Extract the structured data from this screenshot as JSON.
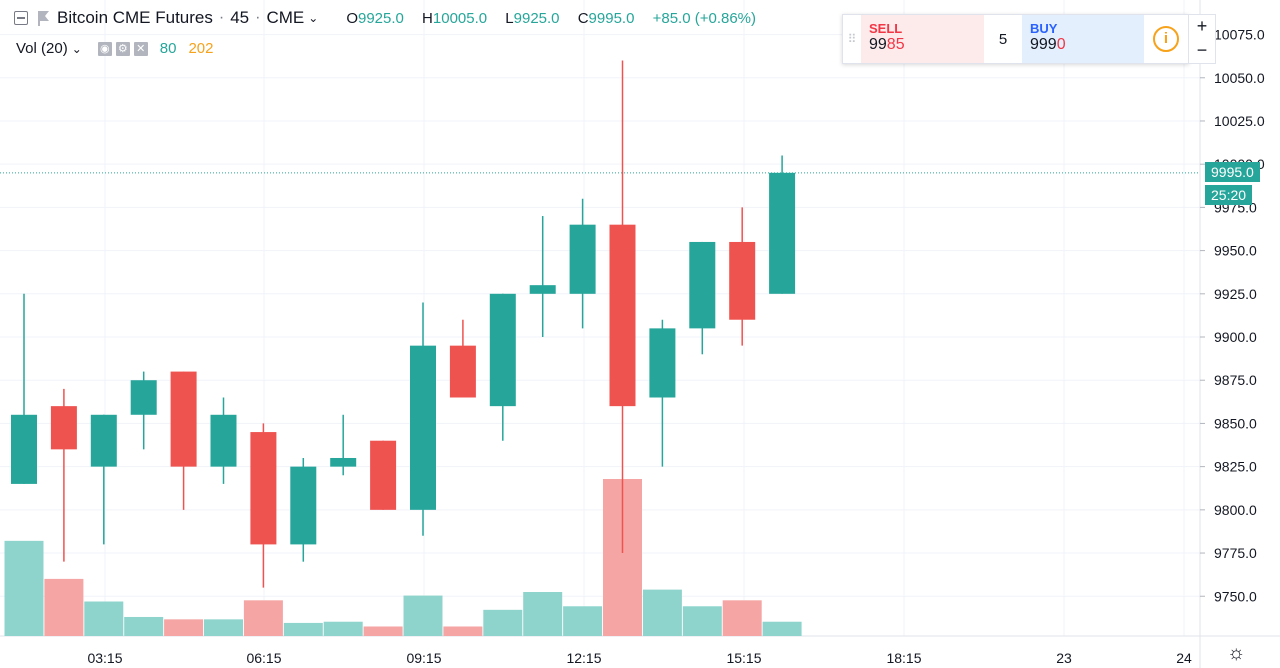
{
  "legend": {
    "title": "Bitcoin CME Futures",
    "interval": "45",
    "exchange": "CME",
    "ohlc": {
      "o_label": "O",
      "o": "9925.0",
      "h_label": "H",
      "h": "10005.0",
      "l_label": "L",
      "l": "9925.0",
      "c_label": "C",
      "c": "9995.0",
      "change": "+85.0 (+0.86%)"
    },
    "separator": "·"
  },
  "volume_legend": {
    "label": "Vol (20)",
    "value_1": "80",
    "value_2": "202"
  },
  "trade_panel": {
    "sell_label": "SELL",
    "sell_price_main": "99",
    "sell_price_hi": "85",
    "quantity": "5",
    "buy_label": "BUY",
    "buy_price_main": "999",
    "buy_price_hi": "0"
  },
  "zoom": {
    "plus": "+",
    "minus": "−"
  },
  "last_price": {
    "price": "9995.0",
    "countdown": "25:20"
  },
  "colors": {
    "up": "#26a69a",
    "down": "#ef5350",
    "up_vol": "#8fd4cc",
    "down_vol": "#f5a5a3"
  },
  "chart_data": {
    "type": "candlestick",
    "symbol": "Bitcoin CME Futures",
    "y_ticks": [
      9750.0,
      9775.0,
      9800.0,
      9825.0,
      9850.0,
      9875.0,
      9900.0,
      9925.0,
      9950.0,
      9975.0,
      10000.0,
      10025.0,
      10050.0,
      10075.0
    ],
    "y_tick_labels": [
      "9750.0",
      "9775.0",
      "9800.0",
      "9825.0",
      "9850.0",
      "9875.0",
      "9900.0",
      "9925.0",
      "9950.0",
      "9975.0",
      "10000.0",
      "10025.0",
      "10050.0",
      "10075.0"
    ],
    "x_ticks": [
      "03:15",
      "06:15",
      "09:15",
      "12:15",
      "15:15",
      "18:15",
      "23",
      "24"
    ],
    "ylim": [
      9727,
      10095
    ],
    "candles": [
      {
        "o": 9815,
        "h": 9925,
        "l": 9815,
        "c": 9855,
        "vol": 80
      },
      {
        "o": 9860,
        "h": 9870,
        "l": 9770,
        "c": 9835,
        "vol": 48
      },
      {
        "o": 9825,
        "h": 9855,
        "l": 9780,
        "c": 9855,
        "vol": 29
      },
      {
        "o": 9855,
        "h": 9880,
        "l": 9835,
        "c": 9875,
        "vol": 16
      },
      {
        "o": 9880,
        "h": 9880,
        "l": 9800,
        "c": 9825,
        "vol": 14
      },
      {
        "o": 9825,
        "h": 9865,
        "l": 9815,
        "c": 9855,
        "vol": 14
      },
      {
        "o": 9845,
        "h": 9850,
        "l": 9755,
        "c": 9780,
        "vol": 30
      },
      {
        "o": 9780,
        "h": 9830,
        "l": 9770,
        "c": 9825,
        "vol": 11
      },
      {
        "o": 9825,
        "h": 9855,
        "l": 9820,
        "c": 9830,
        "vol": 12
      },
      {
        "o": 9840,
        "h": 9840,
        "l": 9800,
        "c": 9800,
        "vol": 8
      },
      {
        "o": 9800,
        "h": 9920,
        "l": 9785,
        "c": 9895,
        "vol": 34
      },
      {
        "o": 9895,
        "h": 9910,
        "l": 9865,
        "c": 9865,
        "vol": 8
      },
      {
        "o": 9860,
        "h": 9925,
        "l": 9840,
        "c": 9925,
        "vol": 22
      },
      {
        "o": 9925,
        "h": 9970,
        "l": 9900,
        "c": 9930,
        "vol": 37
      },
      {
        "o": 9925,
        "h": 9980,
        "l": 9905,
        "c": 9965,
        "vol": 25
      },
      {
        "o": 9965,
        "h": 10060,
        "l": 9775,
        "c": 9860,
        "vol": 132
      },
      {
        "o": 9865,
        "h": 9910,
        "l": 9825,
        "c": 9905,
        "vol": 39
      },
      {
        "o": 9905,
        "h": 9955,
        "l": 9890,
        "c": 9955,
        "vol": 25
      },
      {
        "o": 9955,
        "h": 9975,
        "l": 9895,
        "c": 9910,
        "vol": 30
      },
      {
        "o": 9925,
        "h": 10005,
        "l": 9925,
        "c": 9995,
        "vol": 12
      }
    ],
    "last_price": 9995.0,
    "grid": true
  }
}
